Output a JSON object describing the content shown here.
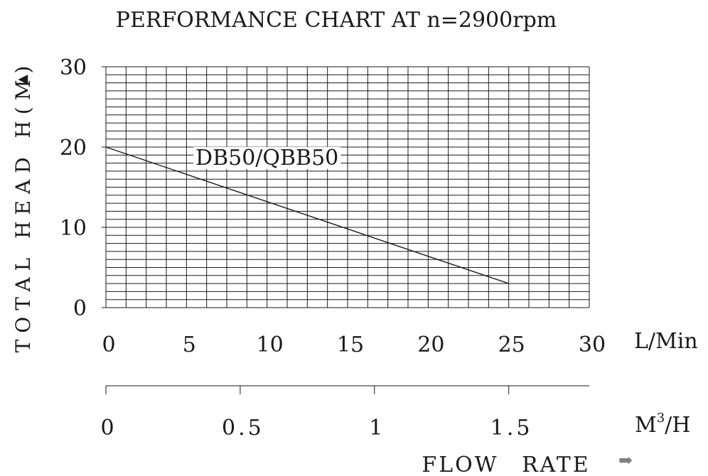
{
  "chart_data": {
    "type": "line",
    "title": "PERFORMANCE CHART AT n=2900rpm",
    "ylabel": "TOTAL HEAD H(M)",
    "y_arrow": "▲",
    "xlabel": "FLOW RATE",
    "x_arrow": "➡",
    "x_unit": "L/Min",
    "x2_unit_base": "M",
    "x2_unit_sup": "3",
    "x2_unit_tail": "/H",
    "xlim": [
      0,
      30
    ],
    "ylim": [
      0,
      30
    ],
    "x_ticks": [
      "0",
      "5",
      "10",
      "15",
      "20",
      "25",
      "30"
    ],
    "y_ticks": [
      "0",
      "10",
      "20",
      "30"
    ],
    "x2_ticks": [
      "0",
      "0.5",
      "1",
      "1.5"
    ],
    "x2_tick_values": [
      0,
      0.5,
      1,
      1.5
    ],
    "x2_per_x": 0.06,
    "grid": true,
    "x_minor_step": 1.25,
    "y_minor_step": 1,
    "series": [
      {
        "name": "DB50/QBB50",
        "color": "#1a1a1a",
        "x": [
          0,
          25
        ],
        "y": [
          20,
          3
        ]
      }
    ],
    "annotations": [
      {
        "text": "DB50/QBB50",
        "x": 10,
        "y": 17.8
      }
    ]
  }
}
